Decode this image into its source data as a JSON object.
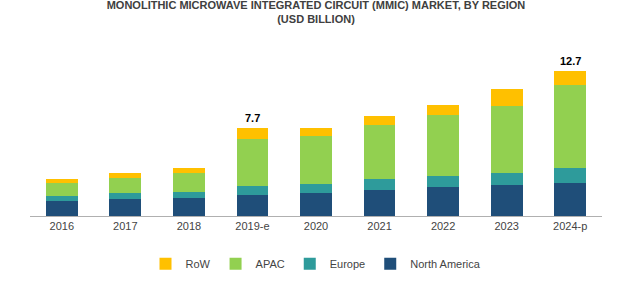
{
  "chart_data": {
    "type": "bar",
    "title": "MONOLITHIC MICROWAVE INTEGRATED CIRCUIT (MMIC) MARKET, BY REGION",
    "subtitle": "(USD BILLION)",
    "categories": [
      "2016",
      "2017",
      "2018",
      "2019-e",
      "2020",
      "2021",
      "2022",
      "2023",
      "2024-p"
    ],
    "series": [
      {
        "name": "North America",
        "color": "#1f4e79",
        "values": [
          1.3,
          1.45,
          1.55,
          1.85,
          2.0,
          2.3,
          2.5,
          2.7,
          2.9
        ]
      },
      {
        "name": "Europe",
        "color": "#2e9b9b",
        "values": [
          0.45,
          0.52,
          0.58,
          0.75,
          0.82,
          0.92,
          1.0,
          1.1,
          1.3
        ]
      },
      {
        "name": "APAC",
        "color": "#92d050",
        "values": [
          1.1,
          1.35,
          1.6,
          4.1,
          4.2,
          4.7,
          5.3,
          5.8,
          7.2
        ]
      },
      {
        "name": "RoW",
        "color": "#ffc000",
        "values": [
          0.35,
          0.48,
          0.47,
          1.0,
          0.68,
          0.78,
          0.9,
          1.5,
          1.3
        ]
      }
    ],
    "annotations": [
      {
        "category": "2019-e",
        "text": "7.7"
      },
      {
        "category": "2024-p",
        "text": "12.7"
      }
    ],
    "stacked": true,
    "ylim": [
      0,
      14.5
    ],
    "grid": false,
    "legend": "bottom",
    "tick_labels": "x"
  }
}
